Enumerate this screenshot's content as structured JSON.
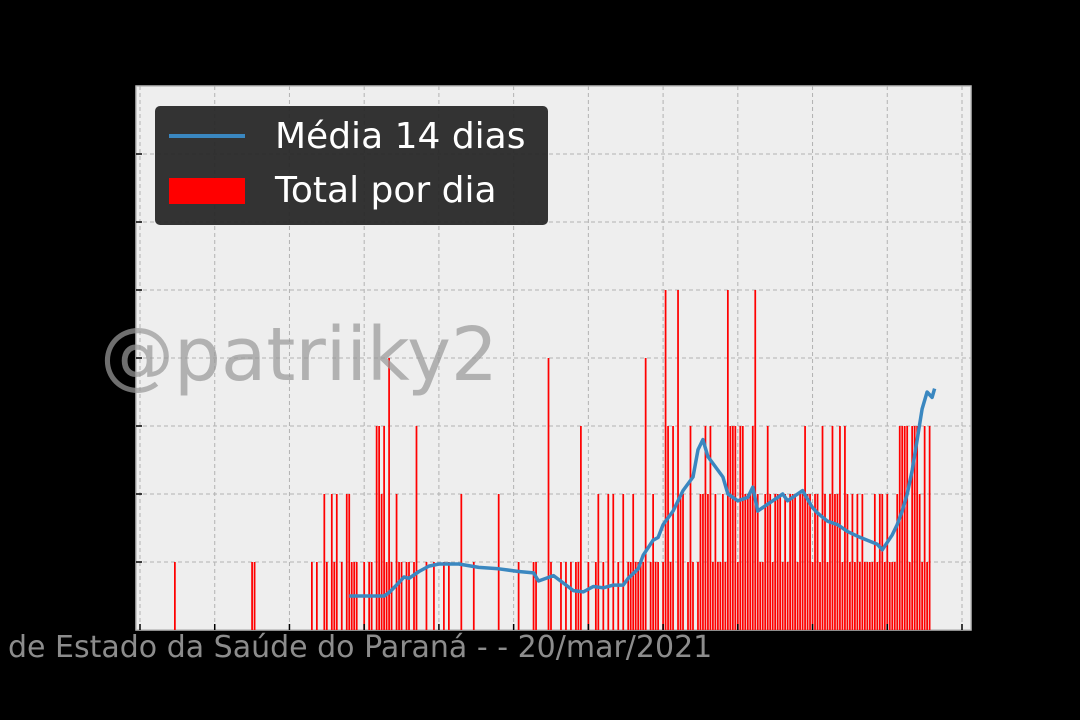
{
  "chart_data": {
    "type": "bar",
    "title": "",
    "xlabel": "",
    "ylabel": "",
    "legend": {
      "placement": "top-left",
      "entries": [
        {
          "label": "Média 14 dias",
          "kind": "line",
          "color": "#3a87c0"
        },
        {
          "label": "Total por dia",
          "kind": "bar",
          "color": "#ff0000"
        }
      ]
    },
    "grid": true,
    "x_tick_count": 12,
    "y_tick_count": 7,
    "ylim": [
      0,
      8
    ],
    "xlim": [
      0,
      330
    ],
    "series": [
      {
        "name": "Total por dia",
        "kind": "bar",
        "color": "#ff0000",
        "points": [
          [
            14,
            1
          ],
          [
            45,
            1
          ],
          [
            46,
            1
          ],
          [
            69,
            1
          ],
          [
            71,
            1
          ],
          [
            74,
            2
          ],
          [
            75,
            1
          ],
          [
            77,
            2
          ],
          [
            78,
            1
          ],
          [
            79,
            2
          ],
          [
            81,
            1
          ],
          [
            83,
            2
          ],
          [
            84,
            2
          ],
          [
            85,
            1
          ],
          [
            86,
            1
          ],
          [
            87,
            1
          ],
          [
            90,
            1
          ],
          [
            92,
            1
          ],
          [
            93,
            1
          ],
          [
            95,
            3
          ],
          [
            96,
            3
          ],
          [
            97,
            2
          ],
          [
            98,
            3
          ],
          [
            99,
            1
          ],
          [
            100,
            4
          ],
          [
            101,
            1
          ],
          [
            103,
            2
          ],
          [
            104,
            1
          ],
          [
            105,
            1
          ],
          [
            107,
            1
          ],
          [
            108,
            1
          ],
          [
            110,
            1
          ],
          [
            111,
            3
          ],
          [
            115,
            1
          ],
          [
            118,
            1
          ],
          [
            122,
            1
          ],
          [
            124,
            1
          ],
          [
            129,
            2
          ],
          [
            134,
            1
          ],
          [
            144,
            2
          ],
          [
            152,
            1
          ],
          [
            158,
            1
          ],
          [
            159,
            1
          ],
          [
            164,
            4
          ],
          [
            165,
            1
          ],
          [
            169,
            1
          ],
          [
            171,
            1
          ],
          [
            173,
            1
          ],
          [
            175,
            1
          ],
          [
            176,
            1
          ],
          [
            177,
            3
          ],
          [
            180,
            1
          ],
          [
            183,
            1
          ],
          [
            184,
            2
          ],
          [
            186,
            1
          ],
          [
            188,
            2
          ],
          [
            190,
            2
          ],
          [
            192,
            1
          ],
          [
            194,
            2
          ],
          [
            196,
            1
          ],
          [
            197,
            1
          ],
          [
            198,
            2
          ],
          [
            199,
            1
          ],
          [
            200,
            1
          ],
          [
            201,
            1
          ],
          [
            202,
            1
          ],
          [
            203,
            4
          ],
          [
            205,
            1
          ],
          [
            206,
            2
          ],
          [
            207,
            1
          ],
          [
            208,
            1
          ],
          [
            210,
            1
          ],
          [
            211,
            5
          ],
          [
            212,
            3
          ],
          [
            213,
            1
          ],
          [
            214,
            3
          ],
          [
            216,
            5
          ],
          [
            217,
            2
          ],
          [
            218,
            2
          ],
          [
            220,
            1
          ],
          [
            221,
            3
          ],
          [
            222,
            1
          ],
          [
            224,
            1
          ],
          [
            225,
            2
          ],
          [
            226,
            2
          ],
          [
            227,
            3
          ],
          [
            228,
            2
          ],
          [
            229,
            3
          ],
          [
            230,
            1
          ],
          [
            231,
            2
          ],
          [
            232,
            1
          ],
          [
            233,
            1
          ],
          [
            234,
            2
          ],
          [
            235,
            1
          ],
          [
            236,
            5
          ],
          [
            237,
            3
          ],
          [
            238,
            3
          ],
          [
            239,
            3
          ],
          [
            240,
            1
          ],
          [
            241,
            3
          ],
          [
            242,
            3
          ],
          [
            243,
            2
          ],
          [
            244,
            2
          ],
          [
            245,
            2
          ],
          [
            246,
            3
          ],
          [
            247,
            5
          ],
          [
            248,
            2
          ],
          [
            249,
            1
          ],
          [
            250,
            1
          ],
          [
            251,
            2
          ],
          [
            252,
            3
          ],
          [
            253,
            2
          ],
          [
            254,
            1
          ],
          [
            255,
            2
          ],
          [
            256,
            2
          ],
          [
            257,
            2
          ],
          [
            258,
            1
          ],
          [
            259,
            2
          ],
          [
            260,
            1
          ],
          [
            261,
            2
          ],
          [
            262,
            2
          ],
          [
            263,
            2
          ],
          [
            264,
            1
          ],
          [
            265,
            2
          ],
          [
            266,
            2
          ],
          [
            267,
            3
          ],
          [
            268,
            2
          ],
          [
            269,
            2
          ],
          [
            270,
            1
          ],
          [
            271,
            2
          ],
          [
            272,
            2
          ],
          [
            273,
            1
          ],
          [
            274,
            3
          ],
          [
            275,
            2
          ],
          [
            276,
            1
          ],
          [
            277,
            2
          ],
          [
            278,
            3
          ],
          [
            279,
            2
          ],
          [
            280,
            2
          ],
          [
            281,
            3
          ],
          [
            282,
            1
          ],
          [
            283,
            3
          ],
          [
            284,
            2
          ],
          [
            285,
            1
          ],
          [
            286,
            2
          ],
          [
            287,
            1
          ],
          [
            288,
            2
          ],
          [
            289,
            1
          ],
          [
            290,
            2
          ],
          [
            291,
            1
          ],
          [
            292,
            1
          ],
          [
            293,
            1
          ],
          [
            294,
            1
          ],
          [
            295,
            2
          ],
          [
            296,
            1
          ],
          [
            297,
            2
          ],
          [
            298,
            2
          ],
          [
            299,
            1
          ],
          [
            300,
            2
          ],
          [
            301,
            1
          ],
          [
            302,
            1
          ],
          [
            303,
            1
          ],
          [
            304,
            2
          ],
          [
            305,
            3
          ],
          [
            306,
            3
          ],
          [
            307,
            3
          ],
          [
            308,
            3
          ],
          [
            309,
            1
          ],
          [
            310,
            3
          ],
          [
            311,
            3
          ],
          [
            312,
            3
          ],
          [
            313,
            2
          ],
          [
            314,
            1
          ],
          [
            315,
            3
          ],
          [
            316,
            1
          ],
          [
            317,
            3
          ]
        ]
      },
      {
        "name": "Média 14 dias",
        "kind": "line",
        "color": "#3a87c0",
        "points": [
          [
            84,
            0.5
          ],
          [
            98,
            0.5
          ],
          [
            100,
            0.55
          ],
          [
            104,
            0.7
          ],
          [
            106,
            0.78
          ],
          [
            108,
            0.76
          ],
          [
            112,
            0.86
          ],
          [
            116,
            0.94
          ],
          [
            120,
            0.97
          ],
          [
            128,
            0.97
          ],
          [
            136,
            0.92
          ],
          [
            144,
            0.9
          ],
          [
            152,
            0.86
          ],
          [
            158,
            0.84
          ],
          [
            160,
            0.72
          ],
          [
            166,
            0.8
          ],
          [
            174,
            0.58
          ],
          [
            178,
            0.56
          ],
          [
            182,
            0.64
          ],
          [
            186,
            0.62
          ],
          [
            190,
            0.66
          ],
          [
            194,
            0.66
          ],
          [
            196,
            0.76
          ],
          [
            200,
            0.9
          ],
          [
            202,
            1.1
          ],
          [
            206,
            1.32
          ],
          [
            208,
            1.36
          ],
          [
            210,
            1.55
          ],
          [
            214,
            1.75
          ],
          [
            218,
            2.05
          ],
          [
            222,
            2.25
          ],
          [
            224,
            2.65
          ],
          [
            226,
            2.8
          ],
          [
            228,
            2.55
          ],
          [
            230,
            2.45
          ],
          [
            234,
            2.25
          ],
          [
            236,
            2.0
          ],
          [
            240,
            1.9
          ],
          [
            244,
            1.95
          ],
          [
            246,
            2.1
          ],
          [
            248,
            1.75
          ],
          [
            252,
            1.85
          ],
          [
            256,
            1.95
          ],
          [
            258,
            2.0
          ],
          [
            260,
            1.9
          ],
          [
            262,
            1.95
          ],
          [
            266,
            2.05
          ],
          [
            270,
            1.8
          ],
          [
            272,
            1.72
          ],
          [
            276,
            1.6
          ],
          [
            280,
            1.55
          ],
          [
            284,
            1.45
          ],
          [
            288,
            1.38
          ],
          [
            292,
            1.32
          ],
          [
            296,
            1.26
          ],
          [
            298,
            1.18
          ],
          [
            302,
            1.4
          ],
          [
            304,
            1.55
          ],
          [
            306,
            1.75
          ],
          [
            308,
            2.0
          ],
          [
            310,
            2.35
          ],
          [
            312,
            2.8
          ],
          [
            314,
            3.25
          ],
          [
            316,
            3.5
          ],
          [
            318,
            3.42
          ],
          [
            319,
            3.55
          ]
        ]
      }
    ]
  },
  "watermark": "@patriiky2",
  "source": "de Estado da Saúde do Paraná -  - 20/mar/2021"
}
